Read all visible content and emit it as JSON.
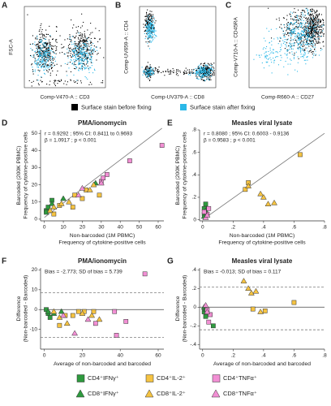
{
  "legend_fix": [
    {
      "name": "Surface stain before fixing",
      "color": "#000000"
    },
    {
      "name": "Surface stain after fixing",
      "color": "#2bb8e8"
    }
  ],
  "groups": [
    {
      "name": "CD4⁺IFNγ⁺",
      "color": "#2e9a3e",
      "marker": "square"
    },
    {
      "name": "CD8⁺IFNγ⁺",
      "color": "#2e9a3e",
      "marker": "triangle"
    },
    {
      "name": "CD4⁺IL-2⁺",
      "color": "#f5c342",
      "marker": "square"
    },
    {
      "name": "CD8⁺IL-2⁺",
      "color": "#f5c342",
      "marker": "triangle"
    },
    {
      "name": "CD4⁺TNFα⁺",
      "color": "#f28fd4",
      "marker": "square"
    },
    {
      "name": "CD8⁺TNFα⁺",
      "color": "#f28fd4",
      "marker": "triangle"
    }
  ],
  "chart_data": [
    {
      "type": "cytometry",
      "panel": "A",
      "xlabel": "Comp-V470-A :: CD3",
      "ylabel": "FSC-A"
    },
    {
      "type": "cytometry",
      "panel": "B",
      "xlabel": "Comp-UV379-A :: CD8",
      "ylabel": "Comp-UV659-A :: CD4"
    },
    {
      "type": "cytometry",
      "panel": "C",
      "xlabel": "Comp-R660-A :: CD27",
      "ylabel": "Comp-V710-A :: CD45RA"
    },
    {
      "type": "scatter",
      "panel": "D",
      "title": "PMA/ionomycin",
      "annotations": [
        "r = 0.9292 ; 95% CI: 0.8411 to 0.9693",
        "β = 1.0917 ; p < 0.001"
      ],
      "xlabel": [
        "Non-barcoded (1M PBMC)",
        "Frequency of cytokine-positive cells"
      ],
      "ylabel": [
        "Barcoded (200K PBMC)",
        "Frequency of cytokine-positive cells"
      ],
      "xlim": [
        -2,
        63
      ],
      "ylim": [
        -1,
        52
      ],
      "xticks": [
        0,
        10,
        20,
        30,
        40,
        50,
        60
      ],
      "yticks": [
        0,
        10,
        20,
        30,
        40,
        50
      ],
      "fit": {
        "x": [
          0,
          62
        ],
        "y": [
          1,
          53
        ]
      },
      "series": [
        {
          "group": 0,
          "x": [
            1,
            2,
            4,
            1
          ],
          "y": [
            5,
            7,
            11,
            4
          ]
        },
        {
          "group": 1,
          "x": [
            4,
            10,
            27
          ],
          "y": [
            9,
            12,
            21
          ]
        },
        {
          "group": 2,
          "x": [
            8,
            15,
            16,
            20,
            22,
            29,
            5
          ],
          "y": [
            8,
            7,
            14,
            12,
            17,
            14,
            3
          ]
        },
        {
          "group": 3,
          "x": [
            3,
            5,
            9,
            13,
            24,
            26
          ],
          "y": [
            5,
            7,
            9,
            10,
            17,
            20
          ]
        },
        {
          "group": 4,
          "x": [
            30,
            33,
            45,
            62,
            31
          ],
          "y": [
            22,
            26,
            34,
            43,
            24
          ]
        },
        {
          "group": 5,
          "x": [
            18,
            20,
            30
          ],
          "y": [
            14,
            18,
            21
          ]
        }
      ]
    },
    {
      "type": "scatter",
      "panel": "E",
      "title": "Measles viral lysate",
      "annotations": [
        "r = 0.8080 ; 95% CI: 0.6003 - 0.9136",
        "β = 0.9583 ; p < 0.001"
      ],
      "xlabel": [
        "Non-barcoded (1M PBMC)",
        "Frequency of cytokine-positive cells"
      ],
      "ylabel": [
        "Barcoded (200K PBMC)",
        "Frequency of cytokine-positive cells"
      ],
      "xlim": [
        -0.02,
        0.8
      ],
      "ylim": [
        -0.01,
        0.8
      ],
      "xticks": [
        0,
        {
          "value": 0.2,
          "label": ".2"
        },
        {
          "value": 0.4,
          "label": ".4"
        },
        {
          "value": 0.6,
          "label": ".6"
        },
        {
          "value": 0.8,
          "label": ".8"
        }
      ],
      "yticks": [
        0,
        {
          "value": 0.2,
          "label": ".2"
        },
        {
          "value": 0.4,
          "label": ".4"
        },
        {
          "value": 0.6,
          "label": ".6"
        },
        {
          "value": 0.8,
          "label": ".8"
        }
      ],
      "fit": {
        "x": [
          0,
          0.8
        ],
        "y": [
          0,
          0.77
        ]
      },
      "series": [
        {
          "group": 0,
          "x": [
            0.01,
            0.02,
            0.01
          ],
          "y": [
            0.1,
            0.14,
            0.05
          ]
        },
        {
          "group": 1,
          "x": [
            0.02,
            0.01
          ],
          "y": [
            0.08,
            0.03
          ]
        },
        {
          "group": 2,
          "x": [
            0.28,
            0.3,
            0.64
          ],
          "y": [
            0.27,
            0.33,
            0.58
          ]
        },
        {
          "group": 3,
          "x": [
            0.3,
            0.38,
            0.43,
            0.47,
            0.4
          ],
          "y": [
            0.3,
            0.23,
            0.14,
            0.15,
            0.2
          ]
        },
        {
          "group": 4,
          "x": [
            0.03,
            0.04,
            0.01
          ],
          "y": [
            0.05,
            0.1,
            0.07
          ]
        },
        {
          "group": 5,
          "x": [
            0.02,
            0.03
          ],
          "y": [
            0.02,
            0.04
          ]
        }
      ]
    },
    {
      "type": "bland-altman",
      "panel": "F",
      "title": "PMA/ionomycin",
      "annotations": [
        "Bias = -2.773; SD of bias = 5.739"
      ],
      "xlabel": [
        "Average of non-barcoded and barcoded"
      ],
      "ylabel": [
        "Difference",
        "(Non-barcoded - Barcoded)"
      ],
      "xlim": [
        -2,
        63
      ],
      "ylim": [
        -20,
        21
      ],
      "xticks": [
        0,
        20,
        40,
        60
      ],
      "yticks": [
        -10,
        0,
        10,
        20
      ],
      "hlines": [
        {
          "value": 0,
          "style": "solid"
        },
        {
          "value": 8.475,
          "style": "dashed"
        },
        {
          "value": -14.021,
          "style": "dashed"
        }
      ],
      "series": [
        {
          "group": 0,
          "x": [
            2,
            3,
            1
          ],
          "y": [
            -2,
            -4,
            0
          ]
        },
        {
          "group": 1,
          "x": [
            2,
            5,
            9
          ],
          "y": [
            -1,
            -2,
            -1
          ]
        },
        {
          "group": 2,
          "x": [
            11,
            15,
            18,
            21,
            26,
            8
          ],
          "y": [
            -3,
            -3,
            -1,
            -1,
            -1,
            -8
          ]
        },
        {
          "group": 3,
          "x": [
            5,
            8,
            12,
            20,
            25,
            29
          ],
          "y": [
            -1,
            -4,
            -7,
            -2,
            -3,
            -5
          ]
        },
        {
          "group": 4,
          "x": [
            27,
            37,
            38,
            53,
            43
          ],
          "y": [
            -7,
            -1,
            -13,
            18,
            -6
          ]
        },
        {
          "group": 5,
          "x": [
            10,
            16,
            23
          ],
          "y": [
            -3,
            -12,
            -5
          ]
        }
      ]
    },
    {
      "type": "bland-altman",
      "panel": "G",
      "title": "Measles viral lysate",
      "annotations": [
        "Bias = -0.013; SD of bias = 0.117"
      ],
      "xlabel": [
        "Average of non-barcoded and barcoded"
      ],
      "ylabel": [
        "Difference",
        "(Non-barcoded - Barcoded)"
      ],
      "xlim": [
        -0.02,
        0.8
      ],
      "ylim": [
        -0.45,
        0.42
      ],
      "xticks": [
        0,
        {
          "value": 0.2,
          "label": ".2"
        },
        {
          "value": 0.4,
          "label": ".4"
        },
        {
          "value": 0.6,
          "label": ".6"
        },
        {
          "value": 0.8,
          "label": ".8"
        }
      ],
      "yticks": [
        {
          "value": -0.4,
          "label": "-.4"
        },
        {
          "value": -0.2,
          "label": "-.2"
        },
        0,
        {
          "value": 0.2,
          "label": ".2"
        },
        {
          "value": 0.4,
          "label": ".4"
        }
      ],
      "hlines": [
        {
          "value": 0,
          "style": "solid"
        },
        {
          "value": 0.216,
          "style": "dashed"
        },
        {
          "value": -0.242,
          "style": "dashed"
        }
      ],
      "series": [
        {
          "group": 0,
          "x": [
            0.01,
            0.07,
            0.02
          ],
          "y": [
            -0.05,
            -0.2,
            -0.1
          ]
        },
        {
          "group": 1,
          "x": [
            0.01,
            0.02
          ],
          "y": [
            0,
            -0.02
          ]
        },
        {
          "group": 2,
          "x": [
            0.33,
            0.41,
            0.6
          ],
          "y": [
            -0.02,
            -0.04,
            0.05
          ]
        },
        {
          "group": 3,
          "x": [
            0.27,
            0.3,
            0.32,
            0.35,
            0.38
          ],
          "y": [
            0.28,
            0.2,
            0.15,
            0.17,
            -0.05
          ]
        },
        {
          "group": 4,
          "x": [
            0.03,
            0.05,
            0.04
          ],
          "y": [
            -0.03,
            -0.08,
            -0.16
          ]
        },
        {
          "group": 5,
          "x": [
            0.02,
            0.03
          ],
          "y": [
            0.02,
            -0.05
          ]
        }
      ]
    }
  ]
}
